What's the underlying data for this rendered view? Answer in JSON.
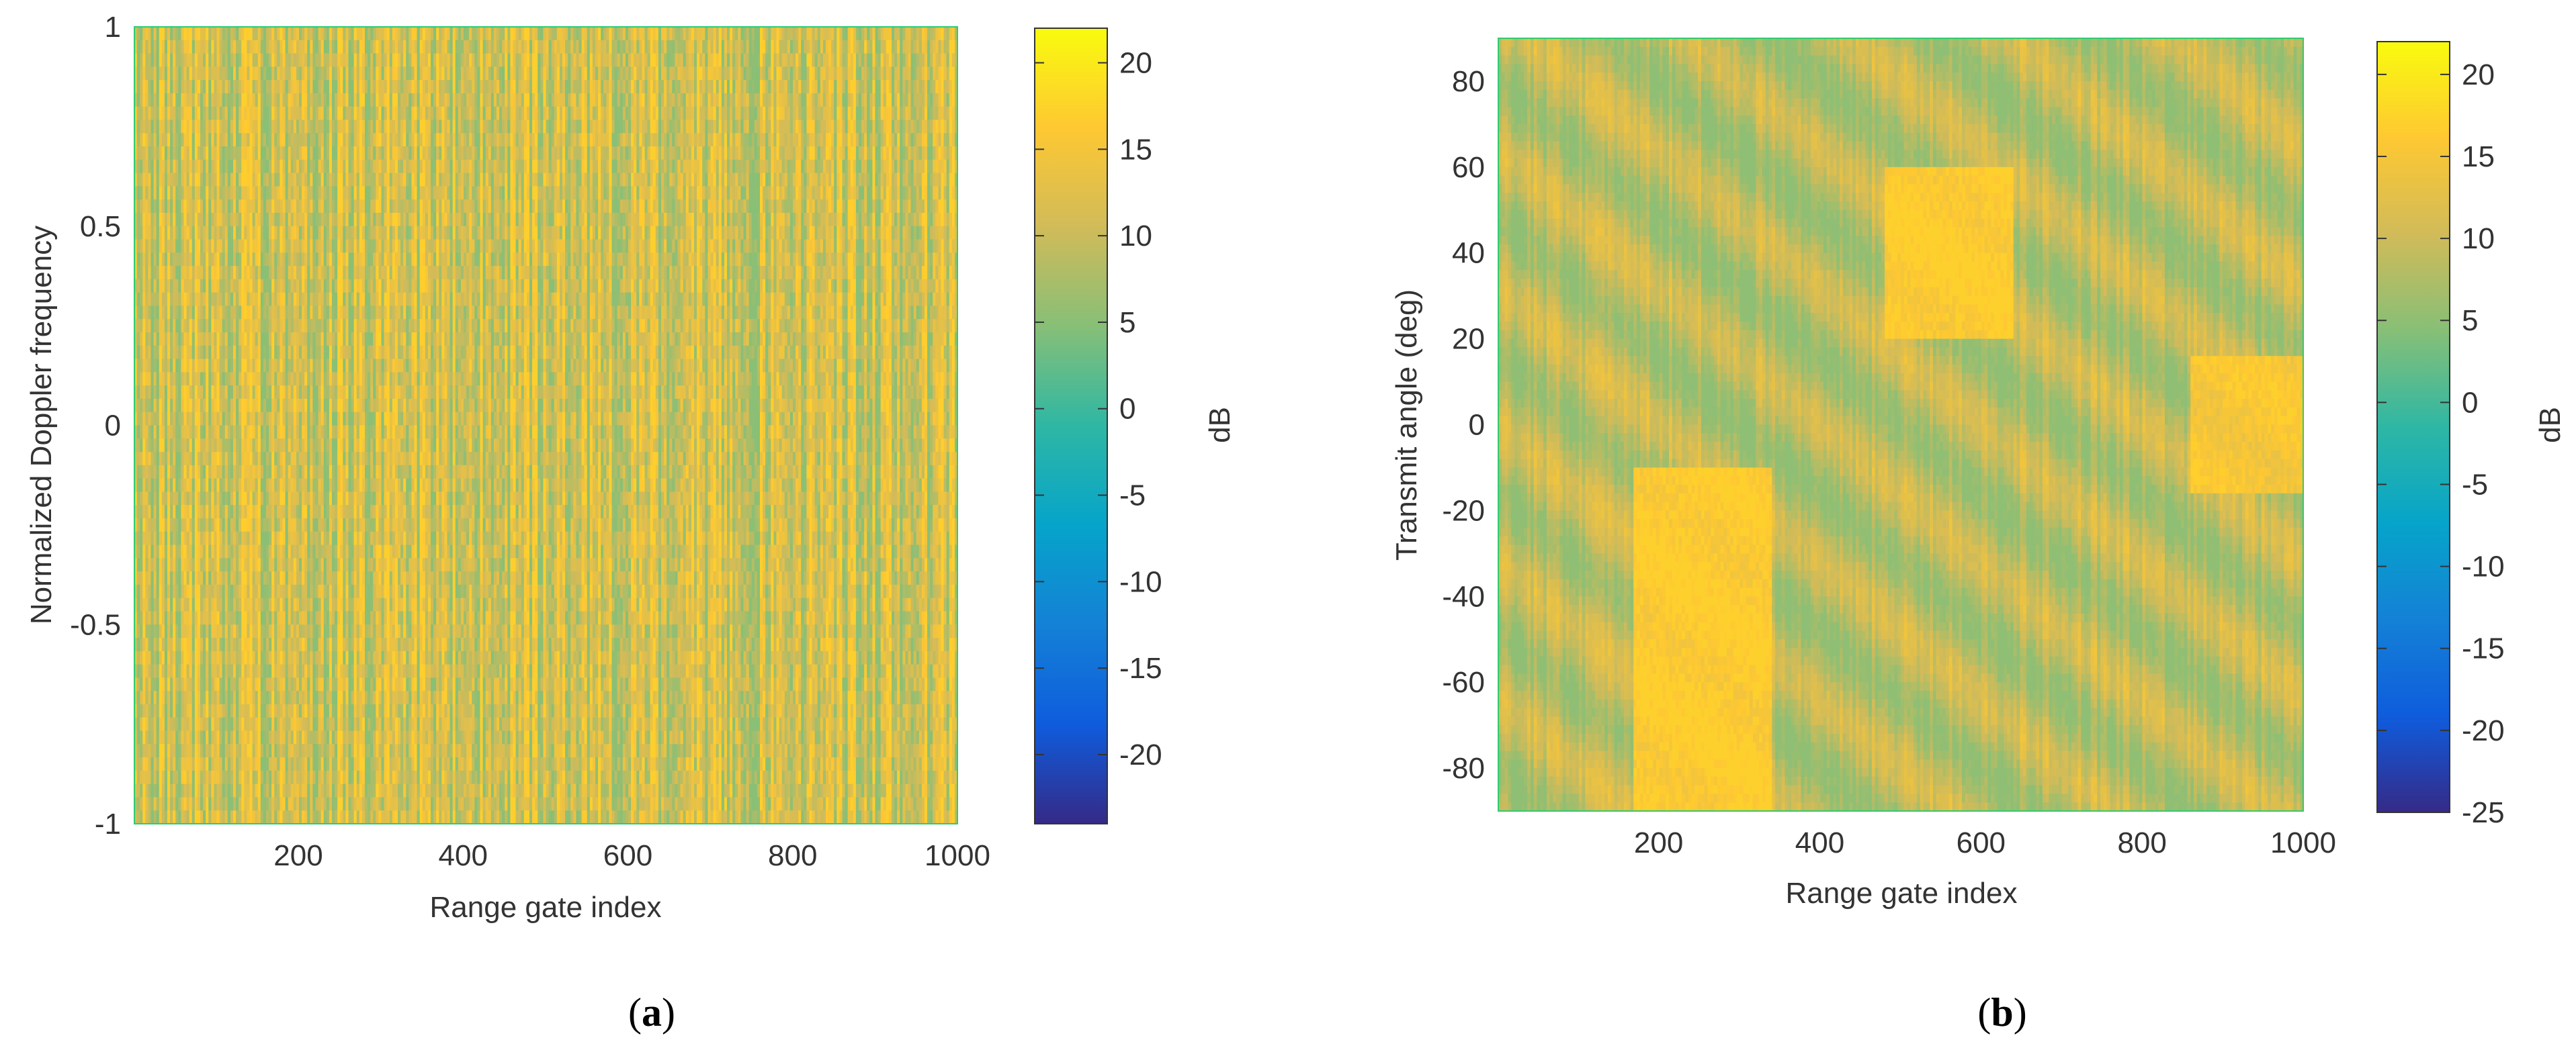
{
  "chart_data": [
    {
      "type": "heatmap",
      "panel": "a",
      "caption_letter": "a",
      "title": "",
      "xlabel": "Range gate index",
      "ylabel": "Normalized Doppler frequency",
      "xlim": [
        1,
        1000
      ],
      "ylim": [
        -1,
        1
      ],
      "xticks": [
        200,
        400,
        600,
        800,
        1000
      ],
      "yticks": [
        1,
        0.5,
        0,
        -0.5,
        -1
      ],
      "xtick_labels": [
        "200",
        "400",
        "600",
        "800",
        "1000"
      ],
      "ytick_labels": [
        "1",
        "0.5",
        "0",
        "-0.5",
        "-1"
      ],
      "colorbar": {
        "label": "dB",
        "range": [
          -24,
          22
        ],
        "ticks": [
          20,
          15,
          10,
          5,
          0,
          -5,
          -10,
          -15,
          -20
        ],
        "tick_labels": [
          "20",
          "15",
          "10",
          "5",
          "0",
          "-5",
          "-10",
          "-15",
          "-20"
        ]
      },
      "pattern": "uniform clutter: values mostly 5 to 17 dB, vertical streaks across all Doppler bins",
      "value_range_observed": [
        5,
        17
      ]
    },
    {
      "type": "heatmap",
      "panel": "b",
      "caption_letter": "b",
      "title": "",
      "xlabel": "Range gate index",
      "ylabel": "Transmit angle (deg)",
      "xlim": [
        1,
        1000
      ],
      "ylim": [
        -90,
        90
      ],
      "xticks": [
        200,
        400,
        600,
        800,
        1000
      ],
      "yticks": [
        80,
        60,
        40,
        20,
        0,
        -20,
        -40,
        -60,
        -80
      ],
      "xtick_labels": [
        "200",
        "400",
        "600",
        "800",
        "1000"
      ],
      "ytick_labels": [
        "80",
        "60",
        "40",
        "20",
        "0",
        "-20",
        "-40",
        "-60",
        "-80"
      ],
      "colorbar": {
        "label": "dB",
        "range": [
          -25,
          22
        ],
        "ticks": [
          20,
          15,
          10,
          5,
          0,
          -5,
          -10,
          -15,
          -20,
          -25
        ],
        "tick_labels": [
          "20",
          "15",
          "10",
          "5",
          "0",
          "-5",
          "-10",
          "-15",
          "-20",
          "-25"
        ]
      },
      "pattern": "diagonal bands: angle decreases with range gate, slope about -0.16 deg per gate",
      "bright_regions": [
        {
          "range_gate": [
            170,
            340
          ],
          "angle_deg": [
            -90,
            -10
          ],
          "level_db": 17
        },
        {
          "range_gate": [
            480,
            640
          ],
          "angle_deg": [
            20,
            60
          ],
          "level_db": 17
        },
        {
          "range_gate": [
            860,
            1000
          ],
          "angle_deg": [
            -15,
            15
          ],
          "level_db": 16
        }
      ],
      "value_range_observed": [
        5,
        17
      ]
    }
  ],
  "colors": {
    "parula_stops": [
      "#352a87",
      "#0f5cdd",
      "#1481d6",
      "#06a4ca",
      "#2eb7a4",
      "#87bf77",
      "#d1bb59",
      "#fec832",
      "#f9fb0e"
    ]
  }
}
